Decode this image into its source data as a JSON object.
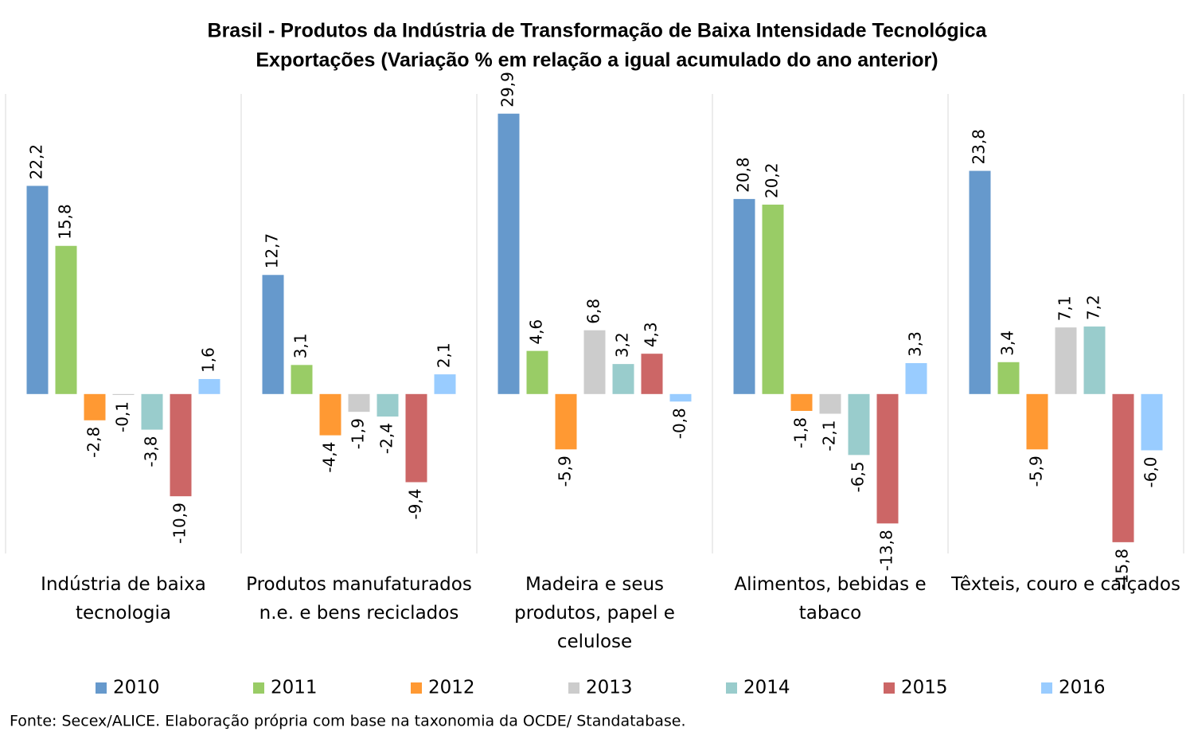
{
  "chart_data": {
    "type": "bar",
    "title": "Brasil - Produtos da Indústria de Transformação de Baixa Intensidade Tecnológica",
    "subtitle": "Exportações (Variação % em relação a igual acumulado do ano anterior)",
    "categories": [
      "Indústria de baixa tecnologia",
      "Produtos manufaturados n.e. e bens reciclados",
      "Madeira e seus produtos, papel e celulose",
      "Alimentos, bebidas e tabaco",
      "Têxteis, couro e calçados"
    ],
    "series": [
      {
        "name": "2010",
        "color": "#6699cc",
        "values": [
          22.2,
          12.7,
          29.9,
          20.8,
          23.8
        ],
        "value_labels": [
          "22,2",
          "12,7",
          "29,9",
          "20,8",
          "23,8"
        ]
      },
      {
        "name": "2011",
        "color": "#99cc66",
        "values": [
          15.8,
          3.1,
          4.6,
          20.2,
          3.4
        ],
        "value_labels": [
          "15,8",
          "3,1",
          "4,6",
          "20,2",
          "3,4"
        ]
      },
      {
        "name": "2012",
        "color": "#ff9933",
        "values": [
          -2.8,
          -4.4,
          -5.9,
          -1.8,
          -5.9
        ],
        "value_labels": [
          "-2,8",
          "-4,4",
          "-5,9",
          "-1,8",
          "-5,9"
        ]
      },
      {
        "name": "2013",
        "color": "#cccccc",
        "values": [
          -0.1,
          -1.9,
          6.8,
          -2.1,
          7.1
        ],
        "value_labels": [
          "-0,1",
          "-1,9",
          "6,8",
          "-2,1",
          "7,1"
        ]
      },
      {
        "name": "2014",
        "color": "#99cccc",
        "values": [
          -3.8,
          -2.4,
          3.2,
          -6.5,
          7.2
        ],
        "value_labels": [
          "-3,8",
          "-2,4",
          "3,2",
          "-6,5",
          "7,2"
        ]
      },
      {
        "name": "2015",
        "color": "#cc6666",
        "values": [
          -10.9,
          -9.4,
          4.3,
          -13.8,
          -15.8
        ],
        "value_labels": [
          "-10,9",
          "-9,4",
          "4,3",
          "-13,8",
          "-15,8"
        ]
      },
      {
        "name": "2016",
        "color": "#99ccff",
        "values": [
          1.6,
          2.1,
          -0.8,
          3.3,
          -6.0
        ],
        "value_labels": [
          "1,6",
          "2,1",
          "-0,8",
          "3,3",
          "-6,0"
        ]
      }
    ],
    "ylim": [
      -17,
      32
    ],
    "legend": "bottom",
    "source": "Fonte: Secex/ALICE. Elaboração própria com base na taxonomia da OCDE/ Standatabase."
  }
}
